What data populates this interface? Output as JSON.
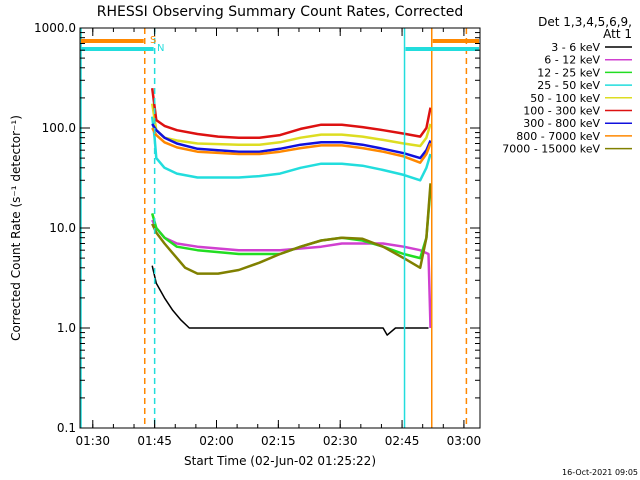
{
  "chart_data": {
    "type": "line",
    "title": "RHESSI Observing Summary Count Rates, Corrected",
    "xlabel": "Start Time (02-Jun-02 01:25:22)",
    "ylabel": "Corrected Count Rate (s⁻¹ detector⁻¹)",
    "yscale": "log",
    "ylim": [
      0.1,
      1000
    ],
    "xlim_minutes": [
      1.5,
      98.5
    ],
    "x_tick_labels": [
      "01:30",
      "01:45",
      "02:00",
      "02:15",
      "02:30",
      "02:45",
      "03:00"
    ],
    "x_tick_minutes": [
      4.6,
      19.6,
      34.6,
      49.6,
      64.6,
      79.6,
      94.6
    ],
    "y_tick_labels": [
      "0.1",
      "1.0",
      "10.0",
      "100.0",
      "1000.0"
    ],
    "y_tick_values": [
      0.1,
      1,
      10,
      100,
      1000
    ],
    "legend": {
      "position": "outside-right",
      "header_lines": [
        "Det 1,3,4,5,6,9,",
        "Att 1"
      ],
      "entries": [
        "3 - 6 keV",
        "6 - 12 keV",
        "12 - 25 keV",
        "25 - 50 keV",
        "50 - 100 keV",
        "100 - 300 keV",
        "300 - 800 keV",
        "800 - 7000 keV",
        "7000 - 15000 keV"
      ]
    },
    "series_colors": [
      "#000000",
      "#d040d0",
      "#22dd22",
      "#22dddd",
      "#dddd22",
      "#dd1111",
      "#1111dd",
      "#ff8800",
      "#808000"
    ],
    "series": [
      {
        "name": "3 - 6 keV",
        "x": [
          19.0,
          20.0,
          22.0,
          24.0,
          26.0,
          28.0,
          30.0,
          40.0,
          50.0,
          60.0,
          70.0,
          75.0,
          76.0,
          78.0,
          80.0,
          85.0,
          86.0
        ],
        "y": [
          4.2,
          2.8,
          2.0,
          1.5,
          1.2,
          1.0,
          1.0,
          1.0,
          1.0,
          1.0,
          1.0,
          1.0,
          0.85,
          1.0,
          1.0,
          1.0,
          1.0
        ]
      },
      {
        "name": "6 - 12 keV",
        "x": [
          19.0,
          20.0,
          22.0,
          25.0,
          30.0,
          40.0,
          50.0,
          60.0,
          65.0,
          70.0,
          75.0,
          80.0,
          84.0,
          86.0,
          86.5
        ],
        "y": [
          12.0,
          10.0,
          8.0,
          7.0,
          6.5,
          6.0,
          6.0,
          6.5,
          7.0,
          7.0,
          7.0,
          6.5,
          6.0,
          5.5,
          1.0
        ]
      },
      {
        "name": "12 - 25 keV",
        "x": [
          19.0,
          20.0,
          22.0,
          25.0,
          30.0,
          40.0,
          50.0,
          55.0,
          60.0,
          65.0,
          70.0,
          75.0,
          80.0,
          84.0,
          85.5,
          86.5
        ],
        "y": [
          14.0,
          10.0,
          8.0,
          6.5,
          6.0,
          5.5,
          5.5,
          6.5,
          7.5,
          8.0,
          7.5,
          6.5,
          5.5,
          5.0,
          8.0,
          25.0
        ]
      },
      {
        "name": "25 - 50 keV",
        "x": [
          19.0,
          19.6,
          20.0,
          22.0,
          25.0,
          30.0,
          40.0,
          45.0,
          50.0,
          55.0,
          60.0,
          65.0,
          70.0,
          75.0,
          80.0,
          84.0,
          85.5,
          86.5
        ],
        "y": [
          130.0,
          80.0,
          50.0,
          40.0,
          35.0,
          32.0,
          32.0,
          33.0,
          35.0,
          40.0,
          44.0,
          44.0,
          42.0,
          38.0,
          34.0,
          30.0,
          40.0,
          55.0
        ]
      },
      {
        "name": "50 - 100 keV",
        "x": [
          19.0,
          20.0,
          22.0,
          25.0,
          30.0,
          40.0,
          45.0,
          50.0,
          55.0,
          60.0,
          65.0,
          70.0,
          75.0,
          80.0,
          84.0,
          85.5,
          86.5
        ],
        "y": [
          175.0,
          95.0,
          80.0,
          75.0,
          70.0,
          68.0,
          68.0,
          72.0,
          80.0,
          86.0,
          86.0,
          82.0,
          76.0,
          70.0,
          66.0,
          80.0,
          110.0
        ]
      },
      {
        "name": "100 - 300 keV",
        "x": [
          19.0,
          20.0,
          22.0,
          25.0,
          30.0,
          35.0,
          40.0,
          45.0,
          50.0,
          55.0,
          60.0,
          65.0,
          70.0,
          75.0,
          80.0,
          84.0,
          85.5,
          86.5
        ],
        "y": [
          250.0,
          120.0,
          105.0,
          95.0,
          87.0,
          82.0,
          80.0,
          80.0,
          85.0,
          98.0,
          108.0,
          108.0,
          102.0,
          95.0,
          88.0,
          82.0,
          100.0,
          160.0
        ]
      },
      {
        "name": "300 - 800 keV",
        "x": [
          19.0,
          20.0,
          22.0,
          25.0,
          30.0,
          40.0,
          45.0,
          50.0,
          55.0,
          60.0,
          65.0,
          70.0,
          75.0,
          80.0,
          84.0,
          85.5,
          86.5
        ],
        "y": [
          110.0,
          95.0,
          80.0,
          70.0,
          62.0,
          58.0,
          58.0,
          62.0,
          68.0,
          72.0,
          72.0,
          68.0,
          62.0,
          56.0,
          50.0,
          60.0,
          75.0
        ]
      },
      {
        "name": "800 - 7000 keV",
        "x": [
          19.0,
          20.0,
          22.0,
          25.0,
          30.0,
          40.0,
          45.0,
          50.0,
          55.0,
          60.0,
          65.0,
          70.0,
          75.0,
          80.0,
          84.0,
          85.5,
          86.5
        ],
        "y": [
          100.0,
          85.0,
          72.0,
          64.0,
          58.0,
          55.0,
          55.0,
          58.0,
          63.0,
          67.0,
          67.0,
          63.0,
          58.0,
          52.0,
          45.0,
          55.0,
          70.0
        ]
      },
      {
        "name": "7000 - 15000 keV",
        "x": [
          19.0,
          20.0,
          22.0,
          25.0,
          27.0,
          30.0,
          35.0,
          40.0,
          45.0,
          50.0,
          55.0,
          60.0,
          65.0,
          70.0,
          75.0,
          80.0,
          84.0,
          85.5,
          86.5
        ],
        "y": [
          11.0,
          9.0,
          7.0,
          5.0,
          4.0,
          3.5,
          3.5,
          3.8,
          4.5,
          5.5,
          6.5,
          7.5,
          8.0,
          7.8,
          6.5,
          5.0,
          4.0,
          8.0,
          28.0
        ]
      }
    ],
    "vertical_lines": [
      {
        "minute": 0.0,
        "color": "#22dddd",
        "style": "solid"
      },
      {
        "minute": 17.2,
        "color": "#ff8800",
        "style": "dashed"
      },
      {
        "minute": 19.6,
        "color": "#22dddd",
        "style": "dashed"
      },
      {
        "minute": 80.2,
        "color": "#22dddd",
        "style": "solid"
      },
      {
        "minute": 86.8,
        "color": "#ff8800",
        "style": "solid"
      },
      {
        "minute": 95.2,
        "color": "#ff8800",
        "style": "dashed"
      }
    ],
    "flag_bars": [
      {
        "label": "S",
        "color": "#ff8800",
        "segments_minutes": [
          [
            0.0,
            17.2
          ],
          [
            86.8,
            98.5
          ]
        ]
      },
      {
        "label": "N",
        "color": "#22dddd",
        "segments_minutes": [
          [
            0.0,
            19.6
          ],
          [
            80.2,
            98.5
          ]
        ]
      }
    ],
    "footer_date": "16-Oct-2021 09:05"
  }
}
